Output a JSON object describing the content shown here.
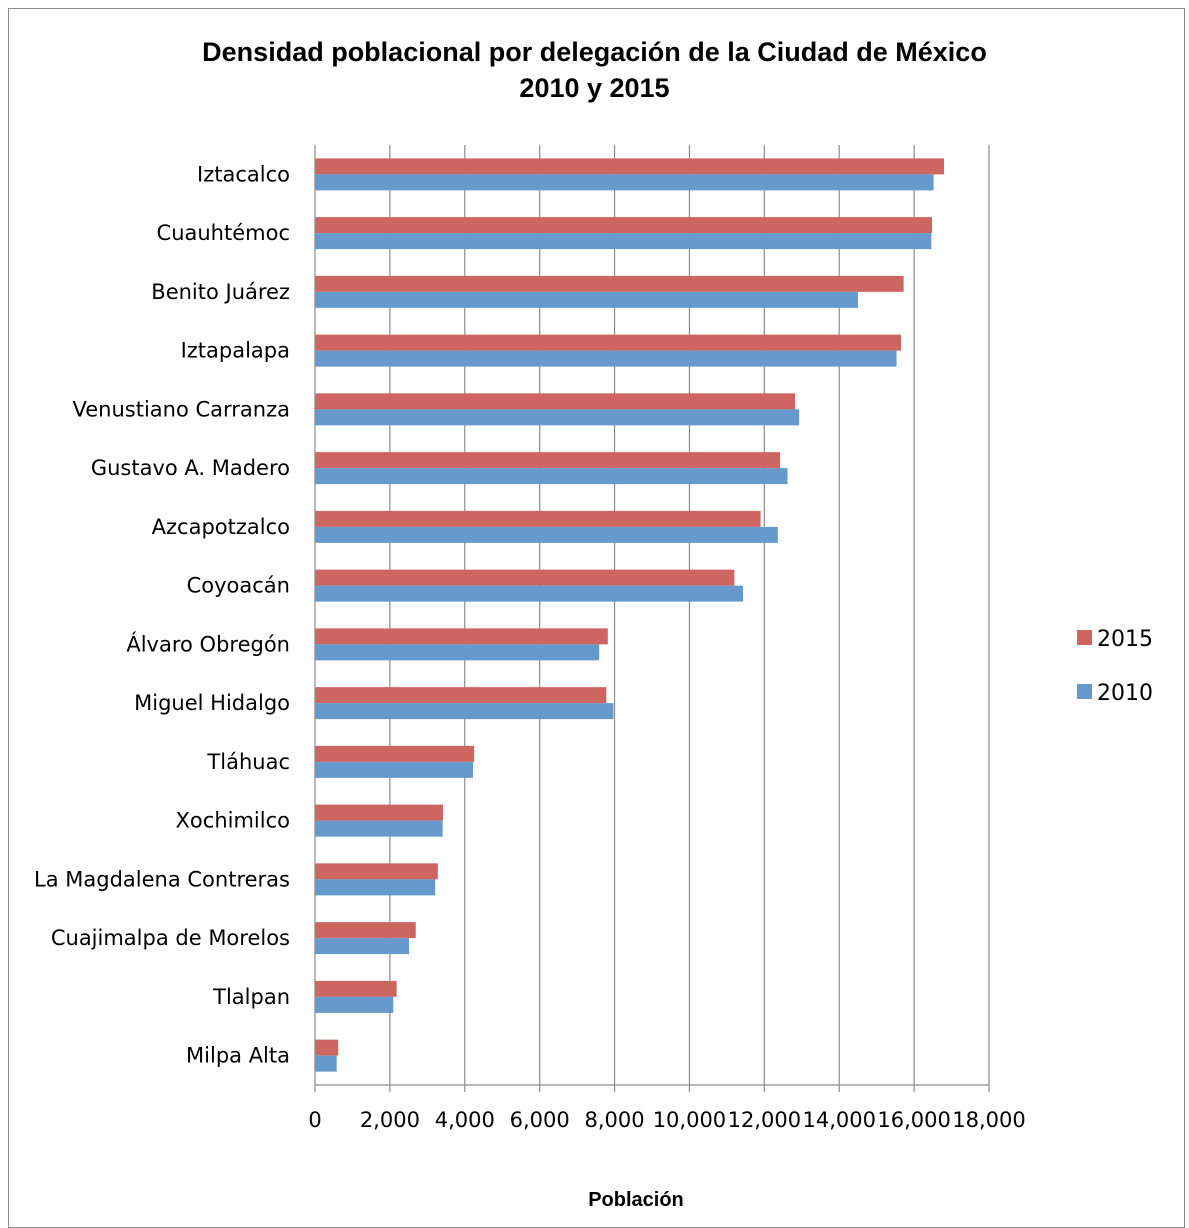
{
  "chart_data": {
    "type": "bar",
    "orientation": "horizontal",
    "title": "Densidad poblacional por delegación de la Ciudad de México",
    "subtitle": "2010 y 2015",
    "xlabel": "Población",
    "ylabel": "",
    "xlim": [
      0,
      18000
    ],
    "x_ticks": [
      0,
      2000,
      4000,
      6000,
      8000,
      10000,
      12000,
      14000,
      16000,
      18000
    ],
    "x_tick_labels": [
      "0",
      "2,000",
      "4,000",
      "6,000",
      "8,000",
      "10,000",
      "12,000",
      "14,000",
      "16,000",
      "18,000"
    ],
    "grid": "vertical major gridlines",
    "legend_position": "right",
    "categories": [
      "Iztacalco",
      "Cuauhtémoc",
      "Benito Juárez",
      "Iztapalapa",
      "Venustiano Carranza",
      "Gustavo A. Madero",
      "Azcapotzalco",
      "Coyoacán",
      "Álvaro Obregón",
      "Miguel Hidalgo",
      "Tláhuac",
      "Xochimilco",
      "La Magdalena Contreras",
      "Cuajimalpa de Morelos",
      "Tlalpan",
      "Milpa Alta"
    ],
    "series": [
      {
        "name": "2015",
        "color": "#cd6660",
        "values": [
          16800,
          16480,
          15720,
          15650,
          12820,
          12420,
          11900,
          11200,
          7820,
          7780,
          4250,
          3420,
          3280,
          2690,
          2180,
          620
        ]
      },
      {
        "name": "2010",
        "color": "#6699cc",
        "values": [
          16520,
          16460,
          14500,
          15530,
          12930,
          12620,
          12360,
          11430,
          7590,
          7970,
          4220,
          3410,
          3210,
          2510,
          2090,
          580
        ]
      }
    ]
  }
}
